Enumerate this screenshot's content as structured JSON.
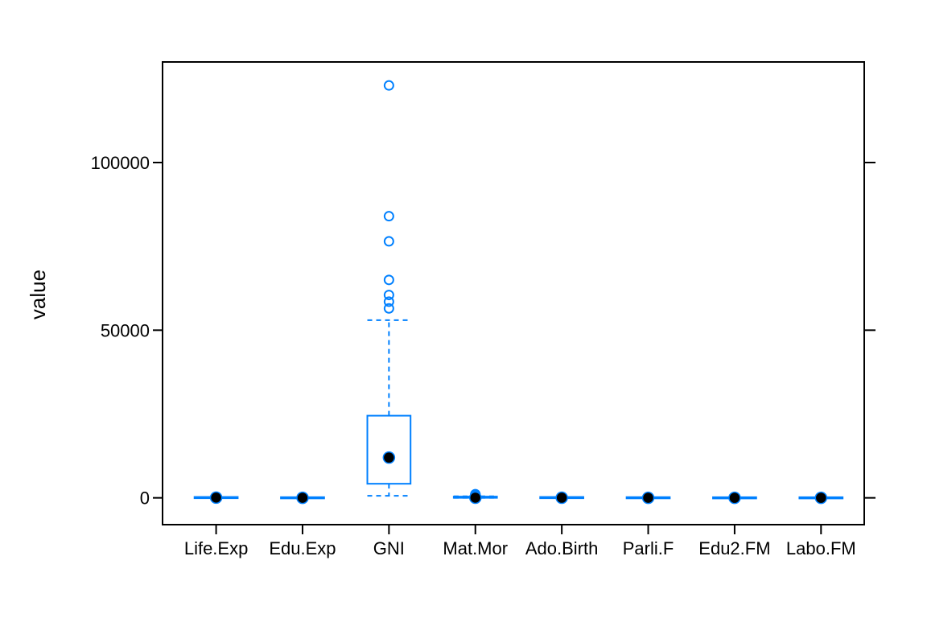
{
  "chart_data": {
    "type": "box",
    "title": "",
    "xlabel": "",
    "ylabel": "value",
    "ylim": [
      -8000,
      130000
    ],
    "yticks": [
      0,
      50000,
      100000
    ],
    "ytick_labels": [
      "0",
      "50000",
      "100000"
    ],
    "box_color": "#0080ff",
    "median_color": "#000000",
    "grid": false,
    "categories": [
      "Life.Exp",
      "Edu.Exp",
      "GNI",
      "Mat.Mor",
      "Ado.Birth",
      "Parli.F",
      "Edu2.FM",
      "Labo.FM"
    ],
    "boxes": [
      {
        "name": "Life.Exp",
        "whisker_low": 49,
        "q1": 66,
        "median": 74,
        "q3": 77,
        "whisker_high": 84,
        "outliers": []
      },
      {
        "name": "Edu.Exp",
        "whisker_low": 5,
        "q1": 11,
        "median": 13,
        "q3": 15,
        "whisker_high": 20,
        "outliers": []
      },
      {
        "name": "GNI",
        "whisker_low": 600,
        "q1": 4200,
        "median": 12000,
        "q3": 24500,
        "whisker_high": 53000,
        "outliers": [
          56500,
          58500,
          60500,
          65000,
          76500,
          84000,
          123000
        ]
      },
      {
        "name": "Mat.Mor",
        "whisker_low": 1,
        "q1": 11,
        "median": 49,
        "q3": 190,
        "whisker_high": 470,
        "outliers": [
          550,
          600,
          700,
          850,
          1000,
          1100
        ]
      },
      {
        "name": "Ado.Birth",
        "whisker_low": 1,
        "q1": 12,
        "median": 33,
        "q3": 72,
        "whisker_high": 160,
        "outliers": [
          175,
          205
        ]
      },
      {
        "name": "Parli.F",
        "whisker_low": 0,
        "q1": 12,
        "median": 19,
        "q3": 28,
        "whisker_high": 50,
        "outliers": [
          57
        ]
      },
      {
        "name": "Edu2.FM",
        "whisker_low": 0.2,
        "q1": 0.7,
        "median": 0.9,
        "q3": 1.0,
        "whisker_high": 1.3,
        "outliers": [
          1.5
        ]
      },
      {
        "name": "Labo.FM",
        "whisker_low": 0.2,
        "q1": 0.6,
        "median": 0.75,
        "q3": 0.85,
        "whisker_high": 1.0,
        "outliers": [
          1.04
        ]
      }
    ]
  }
}
